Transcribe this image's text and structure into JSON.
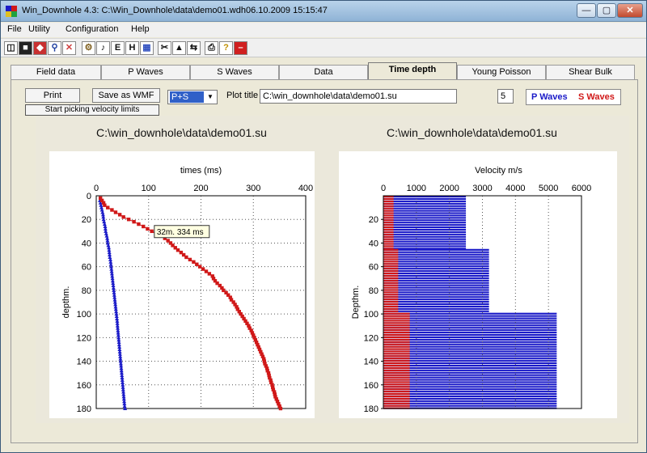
{
  "window": {
    "title": "Win_Downhole 4.3: C:\\Win_Downhole\\data\\demo01.wdh06.10.2009 15:15:47",
    "minimize_label": "—",
    "maximize_label": "▢",
    "close_label": "✕"
  },
  "menu": [
    "File",
    "Utility",
    "Configuration",
    "Help"
  ],
  "toolbar": [
    "open",
    "save",
    "icon",
    "zoom",
    "cancel",
    "tool",
    "pick",
    "E",
    "H",
    "icon",
    "cut",
    "icon",
    "arrows",
    "print",
    "help",
    "stop"
  ],
  "tabs": [
    "Field data",
    "P Waves",
    "S Waves",
    "Data",
    "Time depth",
    "Young Poisson",
    "Shear Bulk"
  ],
  "active_tab": "Time depth",
  "controls": {
    "print_label": "Print",
    "save_wmf_label": "Save as WMF",
    "start_picking_label": "Start picking velocity limits",
    "wave_select": "P+S",
    "plot_title_label": "Plot title",
    "plot_title_value": "C:\\win_downhole\\data\\demo01.su",
    "number_value": "5",
    "legend_p": "P Waves",
    "legend_s": "S Waves"
  },
  "colors": {
    "p_wave": "#1a1ac8",
    "s_wave": "#d01818"
  },
  "tooltip": "32m.  334 ms",
  "chart_data": [
    {
      "type": "line",
      "title": "C:\\win_downhole\\data\\demo01.su",
      "xlabel": "times (ms)",
      "ylabel": "depthm.",
      "xlim": [
        0,
        400
      ],
      "ylim": [
        0,
        180
      ],
      "x_ticks": [
        "0",
        "100",
        "200",
        "300",
        "400"
      ],
      "y_ticks": [
        "0",
        "20",
        "40",
        "60",
        "80",
        "100",
        "120",
        "140",
        "160",
        "180"
      ],
      "series": [
        {
          "name": "P Waves",
          "color": "#1a1ac8",
          "depth": [
            4,
            6,
            8,
            10,
            12,
            14,
            16,
            18,
            20,
            22,
            24,
            26,
            28,
            30,
            32,
            34,
            36,
            38,
            40,
            42,
            44,
            46,
            48,
            50,
            52,
            54,
            56,
            58,
            60,
            62,
            64,
            66,
            68,
            70,
            72,
            74,
            76,
            78,
            80,
            82,
            84,
            86,
            88,
            90,
            92,
            94,
            96,
            98,
            100,
            102,
            104,
            106,
            108,
            110,
            112,
            114,
            116,
            118,
            120,
            122,
            124,
            126,
            128,
            130,
            132,
            134,
            136,
            138,
            140,
            142,
            144,
            146,
            148,
            150,
            152,
            154,
            156,
            158,
            160,
            162,
            164,
            166,
            168,
            170,
            172,
            174,
            176,
            178,
            180
          ],
          "time": [
            7,
            8,
            9,
            10,
            11,
            12,
            13,
            13.5,
            14,
            15,
            16,
            17,
            17.5,
            18,
            19,
            20,
            21,
            21.5,
            22,
            23,
            24,
            24.5,
            25,
            25.5,
            26,
            27,
            27.5,
            28,
            28.5,
            29,
            29.5,
            30,
            30.5,
            31,
            31.5,
            32,
            32.5,
            33,
            33.5,
            34,
            34.5,
            35,
            35.5,
            36,
            36.5,
            37,
            37.5,
            38,
            38.5,
            39,
            39.5,
            40,
            40.3,
            40.6,
            41,
            41.4,
            41.8,
            42.2,
            42.6,
            43,
            43.4,
            43.8,
            44.2,
            44.6,
            45,
            45.4,
            45.8,
            46.2,
            46.6,
            47,
            47.4,
            47.8,
            48.2,
            48.6,
            49,
            49.4,
            49.8,
            50.2,
            50.6,
            51,
            51.4,
            51.8,
            52.2,
            52.6,
            53,
            53.4,
            53.8,
            54.2,
            55
          ]
        },
        {
          "name": "S Waves",
          "color": "#d01818",
          "depth": [
            2,
            4,
            6,
            8,
            10,
            12,
            14,
            16,
            18,
            20,
            22,
            24,
            26,
            28,
            30,
            32,
            34,
            36,
            38,
            40,
            42,
            44,
            46,
            48,
            50,
            52,
            54,
            56,
            58,
            60,
            62,
            64,
            66,
            68,
            70,
            72,
            74,
            76,
            78,
            80,
            82,
            84,
            86,
            88,
            90,
            92,
            94,
            96,
            98,
            100,
            102,
            104,
            106,
            108,
            110,
            112,
            114,
            116,
            118,
            120,
            122,
            124,
            126,
            128,
            130,
            132,
            134,
            136,
            138,
            140,
            142,
            144,
            146,
            148,
            150,
            152,
            154,
            156,
            158,
            160,
            162,
            164,
            166,
            168,
            170,
            172,
            174,
            176,
            178,
            180
          ],
          "time": [
            8,
            11,
            14,
            16,
            22,
            30,
            37,
            45,
            52,
            62,
            72,
            81,
            90,
            98,
            106,
            114,
            122,
            131,
            137,
            142,
            146,
            151,
            156,
            162,
            167,
            172,
            179,
            186,
            192,
            198,
            204,
            210,
            216,
            222,
            224,
            227,
            231,
            236,
            240,
            243,
            248,
            252,
            256,
            258,
            262,
            265,
            268,
            270,
            273,
            276,
            279,
            282,
            285,
            288,
            291,
            293,
            296,
            298,
            300,
            302,
            304,
            306,
            308,
            310,
            312,
            314,
            316,
            318,
            320,
            321,
            322,
            324,
            326,
            327,
            329,
            330,
            331,
            333,
            334,
            336,
            337,
            338,
            340,
            341,
            342,
            344,
            346,
            348,
            350,
            352
          ]
        }
      ]
    },
    {
      "type": "bar",
      "title": "C:\\win_downhole\\data\\demo01.su",
      "xlabel": "Velocity m/s",
      "ylabel": "Depthm.",
      "xlim": [
        0,
        6000
      ],
      "ylim": [
        0,
        180
      ],
      "x_ticks": [
        "0",
        "1000",
        "2000",
        "3000",
        "4000",
        "5000",
        "6000"
      ],
      "y_ticks": [
        "20",
        "40",
        "60",
        "80",
        "100",
        "120",
        "140",
        "160",
        "180"
      ],
      "layers": [
        {
          "top": 0,
          "bottom": 45,
          "p_velocity": 2500,
          "s_velocity": 310
        },
        {
          "top": 45,
          "bottom": 99,
          "p_velocity": 3200,
          "s_velocity": 450
        },
        {
          "top": 99,
          "bottom": 180,
          "p_velocity": 5250,
          "s_velocity": 800
        }
      ]
    }
  ]
}
